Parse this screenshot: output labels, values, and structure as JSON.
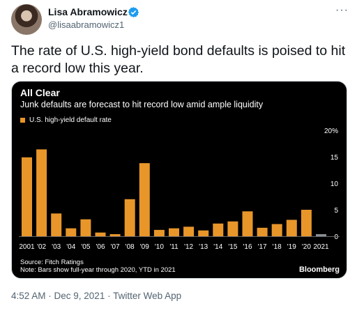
{
  "tweet": {
    "author_name": "Lisa Abramowicz",
    "handle": "@lisaabramowicz1",
    "text": "The rate of U.S. high-yield bond defaults is poised to hit a record low this year.",
    "timestamp": "4:52 AM · Dec 9, 2021 · Twitter Web App",
    "more_icon": "more-icon",
    "verified_icon": "verified-badge-icon",
    "colors": {
      "verified": "#1d9bf0",
      "bar": "#e8962a",
      "bar_ytd": "#8a8f95",
      "chart_bg": "#000000"
    }
  },
  "chart_data": {
    "type": "bar",
    "title": "All Clear",
    "subtitle": "Junk defaults are forecast to hit record low amid ample liquidity",
    "legend": [
      "U.S. high-yield default rate"
    ],
    "categories": [
      "2001",
      "'02",
      "'03",
      "'04",
      "'05",
      "'06",
      "'07",
      "'08",
      "'09",
      "'10",
      "'11",
      "'12",
      "'13",
      "'14",
      "'15",
      "'16",
      "'17",
      "'18",
      "'19",
      "'20",
      "2021"
    ],
    "values": [
      14.9,
      16.4,
      4.3,
      1.5,
      3.2,
      0.7,
      0.4,
      7.0,
      13.8,
      1.2,
      1.5,
      1.8,
      1.1,
      2.4,
      2.8,
      4.7,
      1.6,
      2.3,
      3.1,
      5.0,
      0.4
    ],
    "ylim": [
      0,
      20
    ],
    "yticks": [
      0,
      5,
      10,
      15,
      20
    ],
    "ytick_labels": [
      "0",
      "5",
      "10",
      "15",
      "20%"
    ],
    "source": "Source: Fitch Ratings",
    "note": "Note: Bars show full-year through 2020, YTD in 2021",
    "brand": "Bloomberg",
    "grid": false
  }
}
